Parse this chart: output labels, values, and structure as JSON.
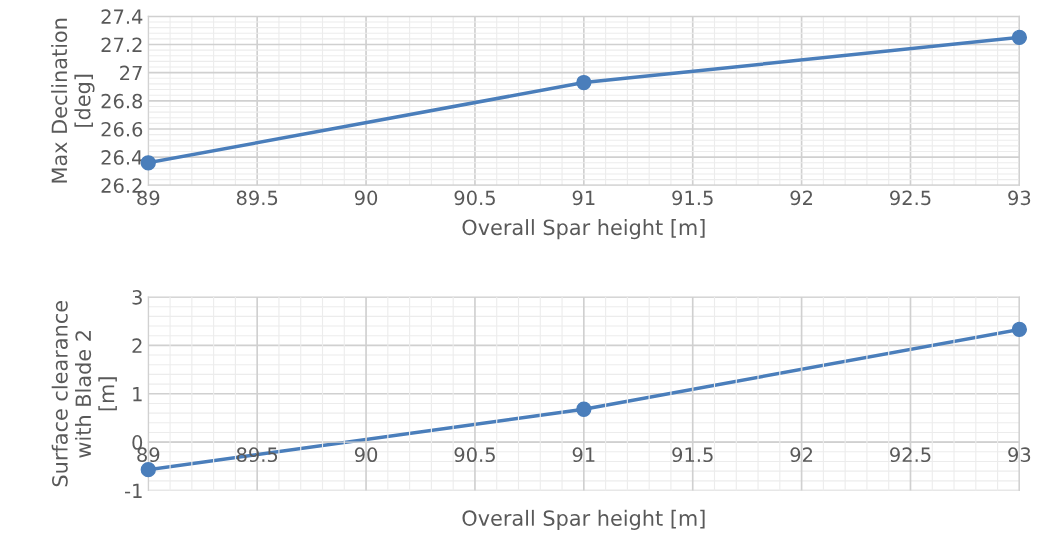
{
  "chart_data": [
    {
      "type": "line",
      "xlabel": "Overall Spar height [m]",
      "ylabel": "Max Declination\n[deg]",
      "x": [
        89,
        91,
        93
      ],
      "series": [
        {
          "color": "#4a7ebb",
          "values": [
            26.36,
            26.93,
            27.25
          ]
        }
      ],
      "xlim": [
        89,
        93
      ],
      "xticks": [
        89,
        89.5,
        90,
        90.5,
        91,
        91.5,
        92,
        92.5,
        93
      ],
      "ylim": [
        26.2,
        27.4
      ],
      "yticks": [
        26.2,
        26.4,
        26.6,
        26.8,
        27,
        27.2,
        27.4
      ],
      "grid": true,
      "marker": "circle",
      "line_style": "solid"
    },
    {
      "type": "line",
      "xlabel": "Overall Spar height [m]",
      "ylabel": "Surface clearance\nwith Blade 2\n[m]",
      "x": [
        89,
        91,
        93
      ],
      "series": [
        {
          "color": "#4a7ebb",
          "values": [
            -0.57,
            0.68,
            2.33
          ]
        }
      ],
      "xlim": [
        89,
        93
      ],
      "xticks": [
        89,
        89.5,
        90,
        90.5,
        91,
        91.5,
        92,
        92.5,
        93
      ],
      "ylim": [
        -1,
        3
      ],
      "yticks": [
        -1,
        0,
        1,
        2,
        3
      ],
      "grid": true,
      "marker": "circle",
      "line_style": "solid"
    }
  ]
}
